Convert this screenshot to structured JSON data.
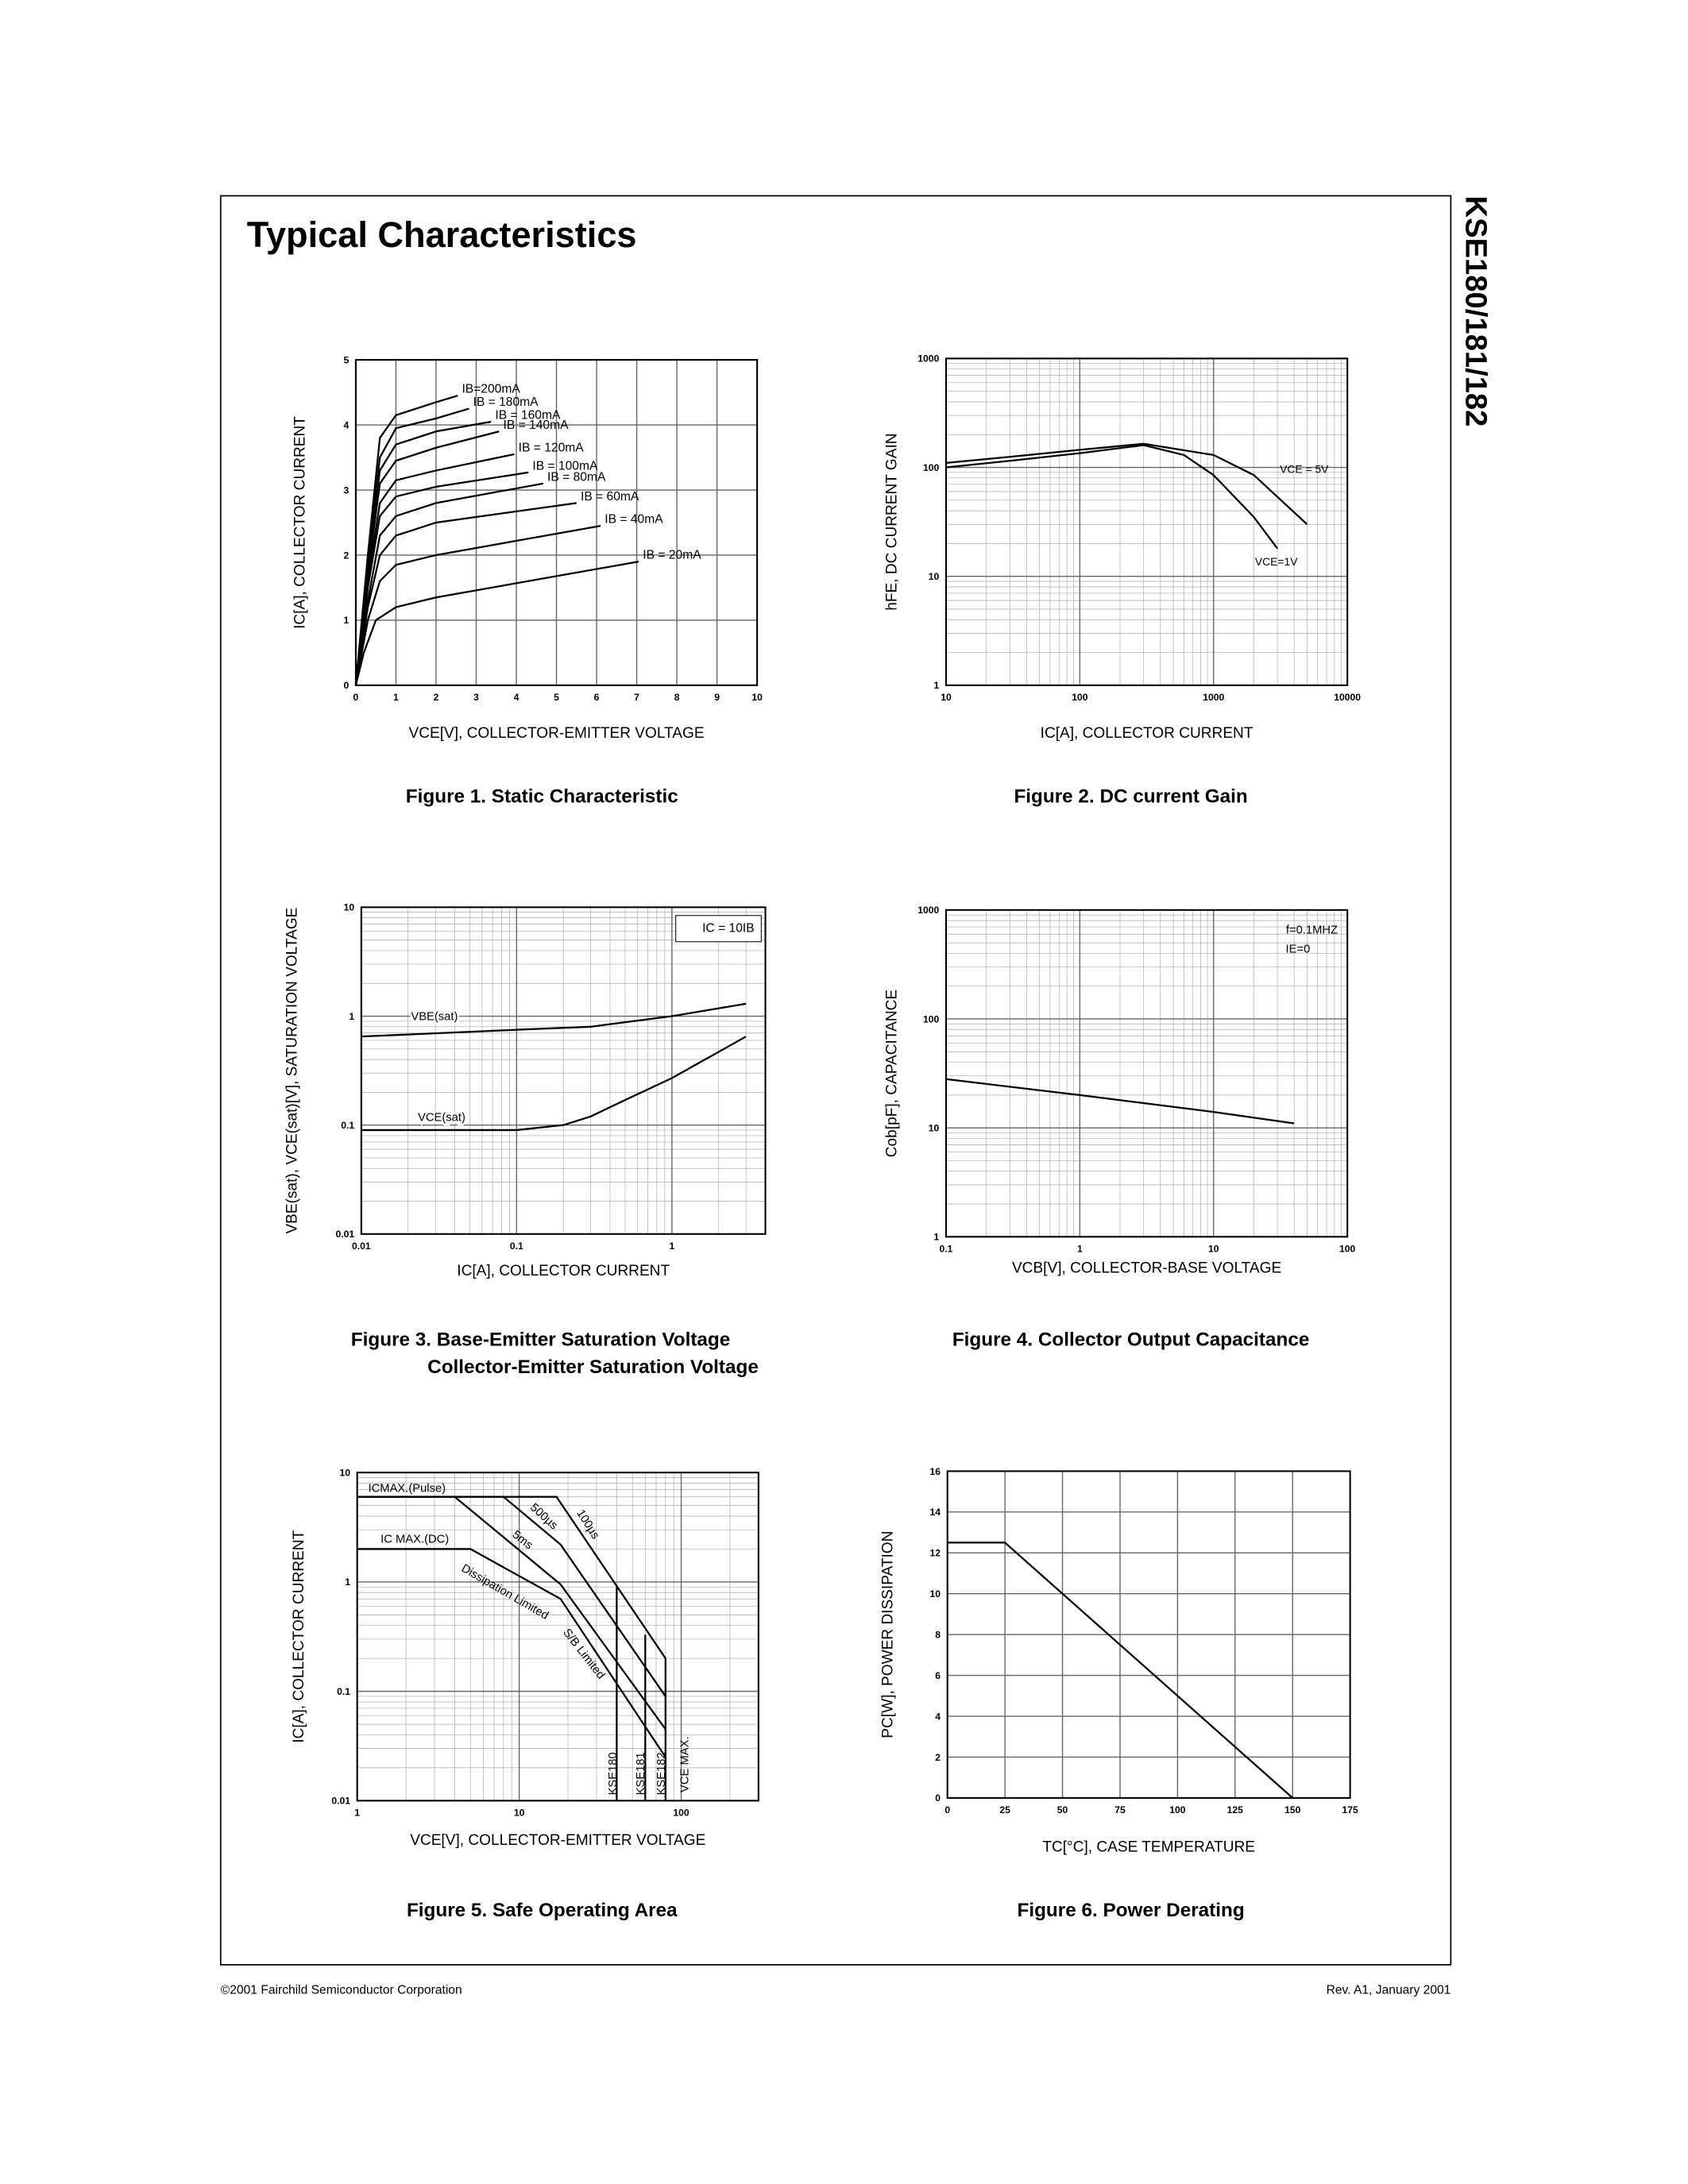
{
  "header": {
    "title": "Typical Characteristics",
    "side_title": "KSE180/181/182"
  },
  "chart_data": [
    {
      "type": "line",
      "title": "Figure 1. Static Characteristic",
      "xlabel": "VCE[V], COLLECTOR-EMITTER VOLTAGE",
      "ylabel": "IC[A], COLLECTOR CURRENT",
      "xlim": [
        0,
        10
      ],
      "ylim": [
        0,
        5
      ],
      "xticks": [
        0,
        1,
        2,
        3,
        4,
        5,
        6,
        7,
        8,
        9,
        10
      ],
      "yticks": [
        0,
        1,
        2,
        3,
        4,
        5
      ],
      "xscale": "linear",
      "yscale": "linear",
      "grid": true,
      "color": "#000000",
      "series": [
        {
          "name": "IB=200mA",
          "x": [
            0,
            0.3,
            0.6,
            1,
            2,
            2.54
          ],
          "values": [
            0,
            2.0,
            3.8,
            4.15,
            4.35,
            4.45
          ]
        },
        {
          "name": "IB = 180mA",
          "x": [
            0,
            0.3,
            0.6,
            1,
            2,
            2.82
          ],
          "values": [
            0,
            1.9,
            3.5,
            3.95,
            4.1,
            4.25
          ]
        },
        {
          "name": "IB = 160mA",
          "x": [
            0,
            0.3,
            0.6,
            1,
            2,
            3.37
          ],
          "values": [
            0,
            1.8,
            3.3,
            3.7,
            3.9,
            4.05
          ]
        },
        {
          "name": "IB = 140mA",
          "x": [
            0,
            0.3,
            0.6,
            1,
            2,
            3.57
          ],
          "values": [
            0,
            1.7,
            3.1,
            3.45,
            3.65,
            3.9
          ]
        },
        {
          "name": "IB = 120mA",
          "x": [
            0,
            0.3,
            0.6,
            1,
            2,
            3.95
          ],
          "values": [
            0,
            1.6,
            2.8,
            3.15,
            3.3,
            3.55
          ]
        },
        {
          "name": "IB = 100mA",
          "x": [
            0,
            0.3,
            0.6,
            1,
            2,
            4.3
          ],
          "values": [
            0,
            1.5,
            2.6,
            2.9,
            3.05,
            3.27
          ]
        },
        {
          "name": "IB = 80mA",
          "x": [
            0,
            0.3,
            0.6,
            1,
            2,
            4.67
          ],
          "values": [
            0,
            1.3,
            2.3,
            2.6,
            2.8,
            3.1
          ]
        },
        {
          "name": "IB = 60mA",
          "x": [
            0,
            0.3,
            0.6,
            1,
            2,
            5.5
          ],
          "values": [
            0,
            1.2,
            2.0,
            2.3,
            2.5,
            2.8
          ]
        },
        {
          "name": "IB = 40mA",
          "x": [
            0,
            0.3,
            0.6,
            1,
            2,
            6.1
          ],
          "values": [
            0,
            1.0,
            1.6,
            1.85,
            2.0,
            2.45
          ]
        },
        {
          "name": "IB = 20mA",
          "x": [
            0,
            0.2,
            0.5,
            1,
            2,
            7.05
          ],
          "values": [
            0,
            0.5,
            1.0,
            1.2,
            1.35,
            1.9
          ]
        }
      ]
    },
    {
      "type": "line",
      "title": "Figure 2. DC current Gain",
      "xlabel": "IC[A], COLLECTOR CURRENT",
      "ylabel": "hFE, DC CURRENT GAIN",
      "xlim": [
        10,
        10000
      ],
      "ylim": [
        1,
        1000
      ],
      "xticks": [
        10,
        100,
        1000,
        10000
      ],
      "yticks": [
        1,
        10,
        100,
        1000
      ],
      "xscale": "log",
      "yscale": "log",
      "grid": true,
      "color": "#000000",
      "series": [
        {
          "name": "VCE = 5V",
          "x": [
            10,
            30,
            100,
            300,
            1000,
            2000,
            5000
          ],
          "values": [
            110,
            125,
            145,
            165,
            130,
            85,
            30
          ]
        },
        {
          "name": "VCE=1V",
          "x": [
            10,
            30,
            100,
            300,
            600,
            1000,
            2000,
            3000
          ],
          "values": [
            100,
            115,
            135,
            160,
            130,
            85,
            35,
            18
          ]
        }
      ]
    },
    {
      "type": "line",
      "title": [
        "Figure 3. Base-Emitter Saturation Voltage",
        "Collector-Emitter Saturation Voltage"
      ],
      "xlabel": "IC[A], COLLECTOR CURRENT",
      "ylabel": "VBE(sat), VCE(sat)[V], SATURATION VOLTAGE",
      "xlim": [
        0.01,
        4
      ],
      "ylim": [
        0.01,
        10
      ],
      "xticks": [
        0.01,
        0.1,
        1
      ],
      "yticks": [
        0.01,
        0.1,
        1,
        10
      ],
      "xscale": "log",
      "yscale": "log",
      "grid": true,
      "color": "#000000",
      "annotations": [
        "IC = 10IB"
      ],
      "series": [
        {
          "name": "VBE(sat)",
          "x": [
            0.01,
            0.1,
            0.3,
            1,
            3
          ],
          "values": [
            0.65,
            0.75,
            0.8,
            1.0,
            1.3
          ]
        },
        {
          "name": "VCE(sat)",
          "x": [
            0.01,
            0.1,
            0.2,
            0.3,
            0.5,
            1,
            3
          ],
          "values": [
            0.09,
            0.09,
            0.1,
            0.12,
            0.17,
            0.27,
            0.65
          ]
        }
      ]
    },
    {
      "type": "line",
      "title": "Figure 4. Collector Output Capacitance",
      "xlabel": "VCB[V], COLLECTOR-BASE VOLTAGE",
      "ylabel": "Cob[pF], CAPACITANCE",
      "xlim": [
        0.1,
        100
      ],
      "ylim": [
        1,
        1000
      ],
      "xticks": [
        0.1,
        1,
        10,
        100
      ],
      "yticks": [
        1,
        10,
        100,
        1000
      ],
      "xscale": "log",
      "yscale": "log",
      "grid": true,
      "color": "#000000",
      "annotations": [
        "f=0.1MHZ",
        "IE=0"
      ],
      "series": [
        {
          "x": [
            0.1,
            1,
            10,
            40
          ],
          "values": [
            28,
            20,
            14,
            11
          ]
        }
      ]
    },
    {
      "type": "line",
      "title": "Figure 5. Safe Operating Area",
      "xlabel": "VCE[V], COLLECTOR-EMITTER VOLTAGE",
      "ylabel": "IC[A], COLLECTOR CURRENT",
      "xlim": [
        1,
        300
      ],
      "ylim": [
        0.01,
        10
      ],
      "xticks": [
        1,
        10,
        100
      ],
      "yticks": [
        0.01,
        0.1,
        1,
        10
      ],
      "xscale": "log",
      "yscale": "log",
      "grid": true,
      "color": "#000000",
      "annotations": [
        "ICMAX.(Pulse)",
        "IC MAX.(DC)",
        "Dissipation Limited",
        "S/B Limited",
        "VCE MAX."
      ],
      "series": [
        {
          "name": "100µs",
          "x": [
            1,
            17,
            80
          ],
          "values": [
            6,
            6,
            0.2
          ]
        },
        {
          "name": "500µs",
          "x": [
            1,
            8,
            18,
            80
          ],
          "values": [
            6,
            6,
            2.2,
            0.09
          ]
        },
        {
          "name": "5ms",
          "x": [
            1,
            4,
            18,
            80
          ],
          "values": [
            6,
            6,
            0.95,
            0.045
          ]
        },
        {
          "x": [
            1,
            5,
            18,
            80
          ],
          "values": [
            2,
            2,
            0.7,
            0.025
          ]
        },
        {
          "name": "KSE180",
          "x": [
            40,
            40
          ],
          "values": [
            0.01,
            0.9
          ]
        },
        {
          "name": "KSE181",
          "x": [
            60,
            60
          ],
          "values": [
            0.01,
            0.33
          ]
        },
        {
          "name": "KSE182",
          "x": [
            80,
            80
          ],
          "values": [
            0.01,
            0.2
          ]
        }
      ]
    },
    {
      "type": "line",
      "title": "Figure 6. Power Derating",
      "xlabel": "TC[°C], CASE TEMPERATURE",
      "ylabel": "PC[W], POWER DISSIPATION",
      "xlim": [
        0,
        175
      ],
      "ylim": [
        0,
        16
      ],
      "xticks": [
        0,
        25,
        50,
        75,
        100,
        125,
        150,
        175
      ],
      "yticks": [
        0,
        2,
        4,
        6,
        8,
        10,
        12,
        14,
        16
      ],
      "xscale": "linear",
      "yscale": "linear",
      "grid": true,
      "color": "#000000",
      "series": [
        {
          "x": [
            0,
            25,
            150
          ],
          "values": [
            12.5,
            12.5,
            0
          ]
        }
      ]
    }
  ],
  "footer": {
    "left": "©2001 Fairchild Semiconductor Corporation",
    "right": "Rev. A1, January 2001"
  }
}
